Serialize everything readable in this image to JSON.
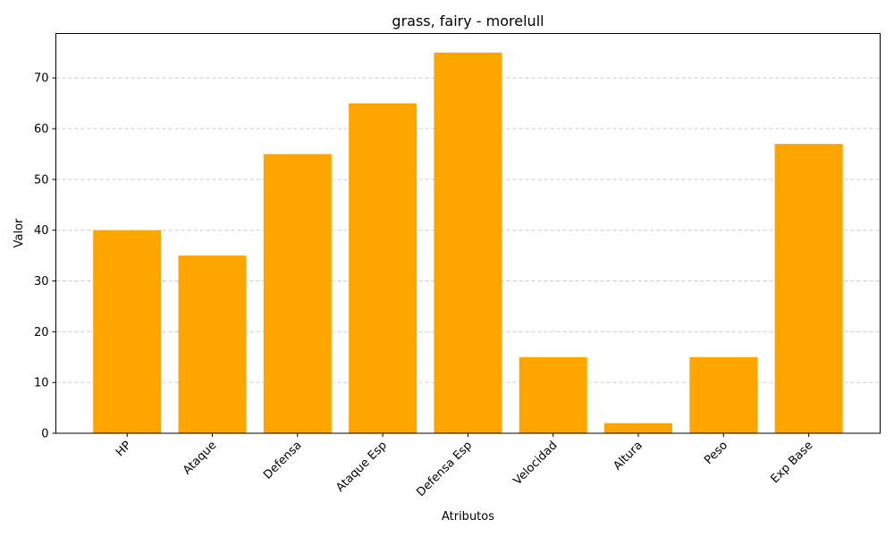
{
  "chart_data": {
    "type": "bar",
    "title": "grass, fairy - morelull",
    "xlabel": "Atributos",
    "ylabel": "Valor",
    "categories": [
      "HP",
      "Ataque",
      "Defensa",
      "Ataque Esp",
      "Defensa Esp",
      "Velocidad",
      "Altura",
      "Peso",
      "Exp Base"
    ],
    "values": [
      40,
      35,
      55,
      65,
      75,
      15,
      2,
      15,
      57
    ],
    "ylim": [
      0,
      78.75
    ],
    "yticks": [
      0,
      10,
      20,
      30,
      40,
      50,
      60,
      70
    ],
    "grid": "y-dashed",
    "bar_color": "#ffa500",
    "legend": "none"
  }
}
